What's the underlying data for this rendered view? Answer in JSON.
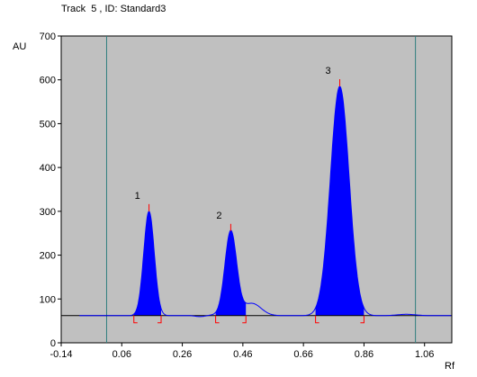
{
  "header": {
    "title": "Track  5 , ID: Standard3"
  },
  "chart_data": {
    "type": "area",
    "xlabel": "Rf",
    "ylabel": "AU",
    "xlim": [
      -0.14,
      1.15
    ],
    "ylim": [
      0,
      700
    ],
    "x_ticks": [
      -0.14,
      0.06,
      0.26,
      0.46,
      0.66,
      0.86,
      1.06
    ],
    "x_tick_labels": [
      "-0.14",
      "0.06",
      "0.26",
      "0.46",
      "0.66",
      "0.86",
      "1.06"
    ],
    "y_ticks": [
      0,
      100,
      200,
      300,
      400,
      500,
      600,
      700
    ],
    "y_tick_labels": [
      "0",
      "100",
      "200",
      "300",
      "400",
      "500",
      "600",
      "700"
    ],
    "baseline": 62,
    "front_lines_rf": [
      0.01,
      1.03
    ],
    "bump": {
      "x": 0.49,
      "height": 90
    },
    "peaks": [
      {
        "label": "1",
        "x": 0.15,
        "height": 300,
        "start": 0.1,
        "end": 0.19
      },
      {
        "label": "2",
        "x": 0.42,
        "height": 255,
        "start": 0.37,
        "end": 0.47
      },
      {
        "label": "3",
        "x": 0.78,
        "height": 585,
        "start": 0.7,
        "end": 0.86
      }
    ],
    "colors": {
      "plot_background": "#c0c0c0",
      "peak_fill": "#0000ff",
      "trace": "#0000ff",
      "baseline": "#000000",
      "markers": "#ff0000",
      "front_lines": "#2e7d7d"
    },
    "grid": false
  }
}
